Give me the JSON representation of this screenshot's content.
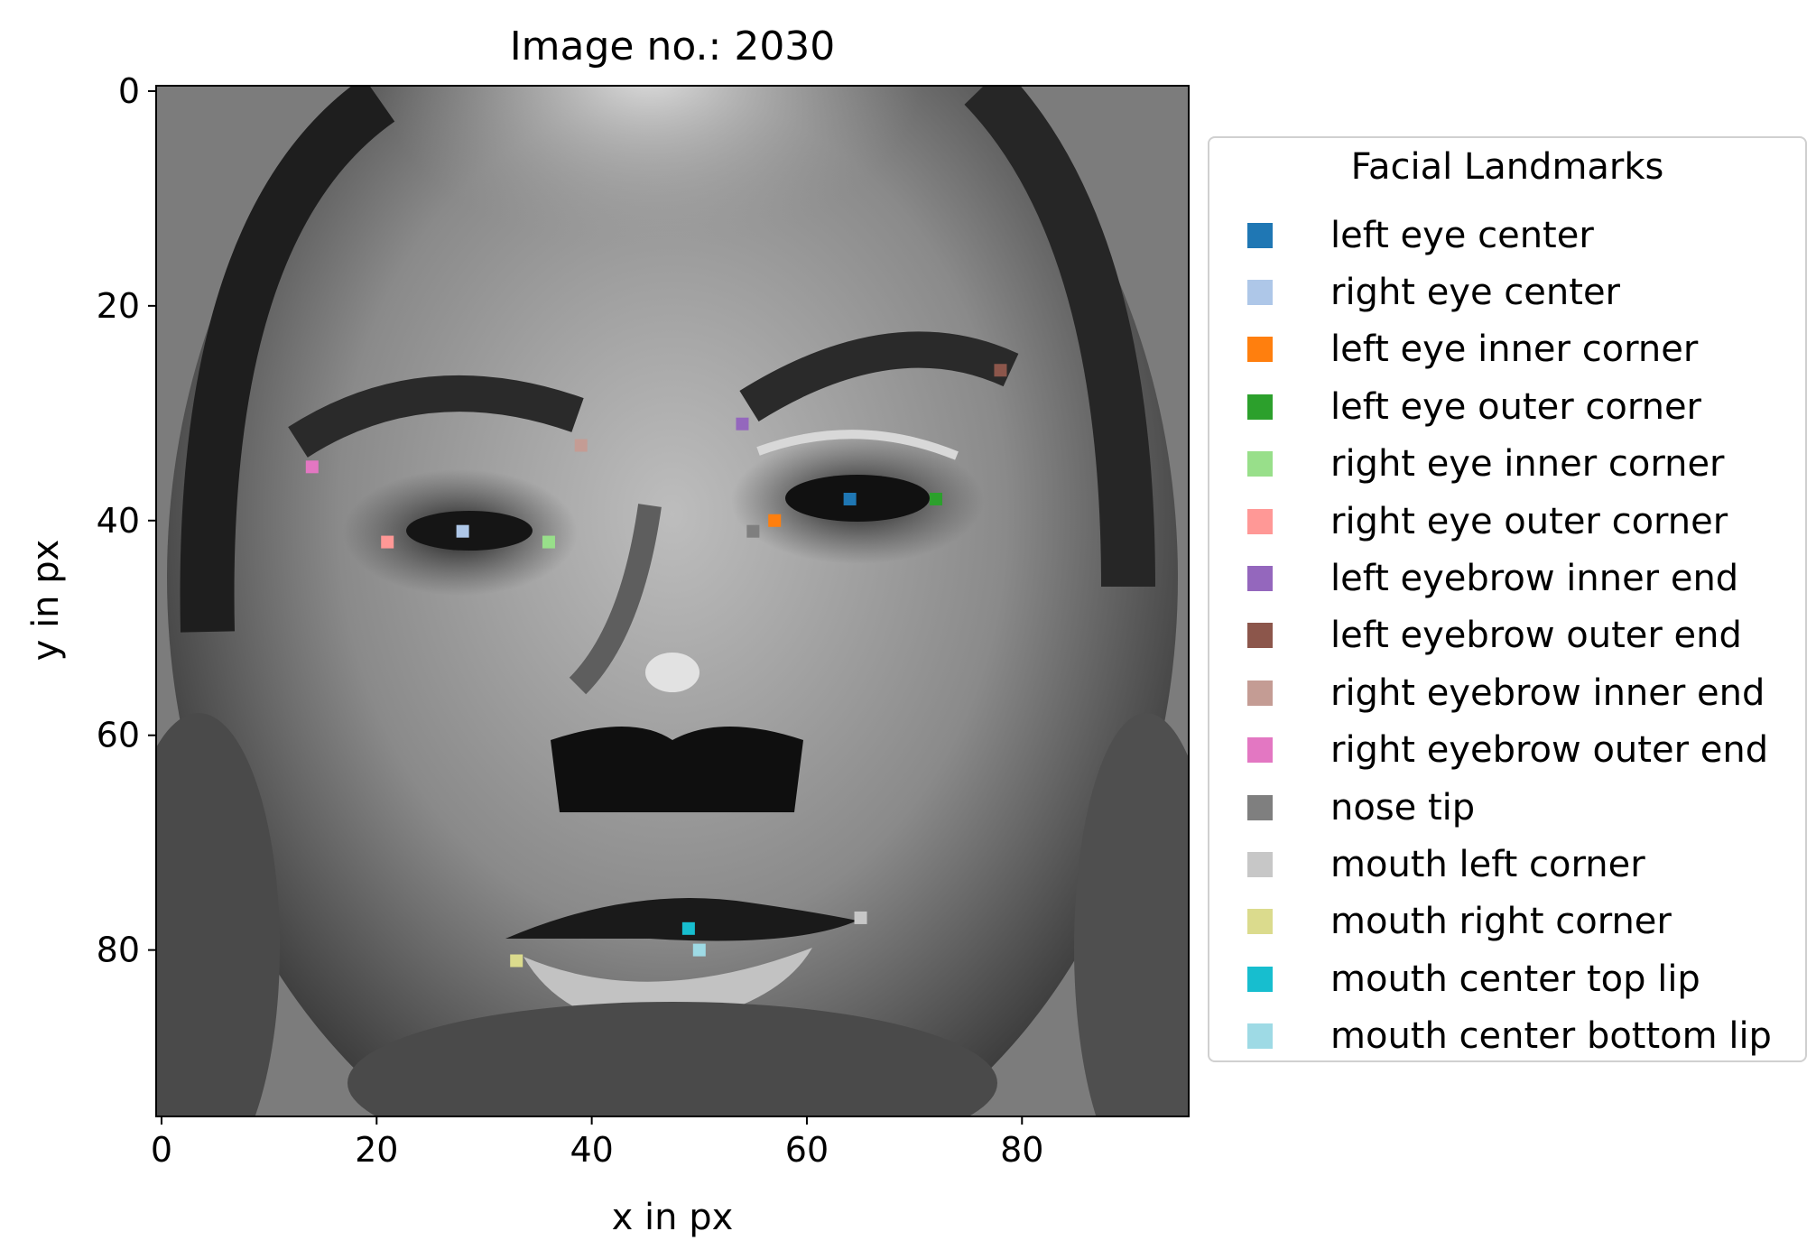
{
  "chart_data": {
    "type": "scatter",
    "title": "Image no.: 2030",
    "xlabel": "x in px",
    "ylabel": "y in px",
    "xlim": [
      -0.5,
      95.5
    ],
    "ylim": [
      95.5,
      -0.5
    ],
    "y_inverted": true,
    "x_ticks": [
      0,
      20,
      40,
      60,
      80
    ],
    "y_ticks": [
      0,
      20,
      40,
      60,
      80
    ],
    "background": "grayscale face photograph (96x96 px)",
    "grid": false,
    "legend": {
      "title": "Facial Landmarks",
      "placement": "outside-right"
    },
    "series": [
      {
        "name": "left eye center",
        "color": "#1f77b4",
        "x": 64,
        "y": 38
      },
      {
        "name": "right eye center",
        "color": "#aec7e8",
        "x": 28,
        "y": 41
      },
      {
        "name": "left eye inner corner",
        "color": "#ff7f0e",
        "x": 57,
        "y": 40
      },
      {
        "name": "left eye outer corner",
        "color": "#2ca02c",
        "x": 72,
        "y": 38
      },
      {
        "name": "right eye inner corner",
        "color": "#98df8a",
        "x": 36,
        "y": 42
      },
      {
        "name": "right eye outer corner",
        "color": "#ff9896",
        "x": 21,
        "y": 42
      },
      {
        "name": "left eyebrow inner end",
        "color": "#9467bd",
        "x": 54,
        "y": 31
      },
      {
        "name": "left eyebrow outer end",
        "color": "#8c564b",
        "x": 78,
        "y": 26
      },
      {
        "name": "right eyebrow inner end",
        "color": "#c49c94",
        "x": 39,
        "y": 33
      },
      {
        "name": "right eyebrow outer end",
        "color": "#e377c2",
        "x": 14,
        "y": 35
      },
      {
        "name": "nose tip",
        "color": "#7f7f7f",
        "x": 55,
        "y": 41
      },
      {
        "name": "mouth left corner",
        "color": "#c7c7c7",
        "x": 65,
        "y": 77
      },
      {
        "name": "mouth right corner",
        "color": "#dbdb8d",
        "x": 33,
        "y": 81
      },
      {
        "name": "mouth center top lip",
        "color": "#17becf",
        "x": 49,
        "y": 78
      },
      {
        "name": "mouth center bottom lip",
        "color": "#9edae5",
        "x": 50,
        "y": 80
      }
    ]
  }
}
